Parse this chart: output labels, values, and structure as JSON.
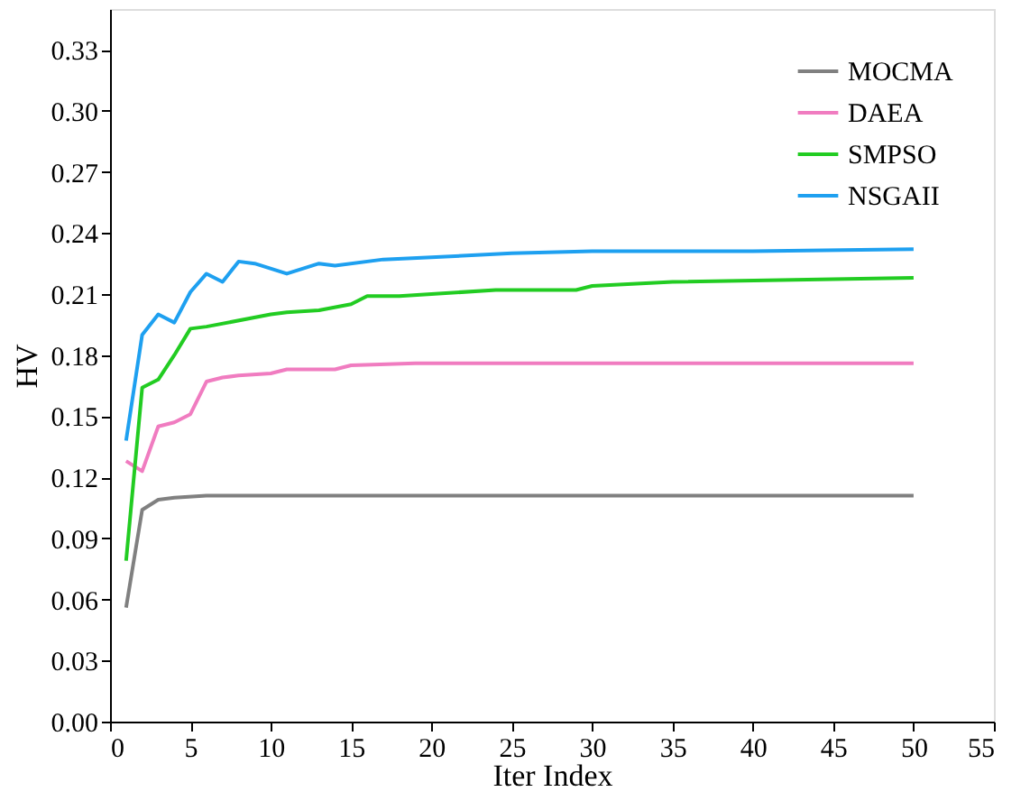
{
  "chart_data": {
    "type": "line",
    "xlabel": "Iter Index",
    "ylabel": "HV",
    "xlim": [
      0,
      55
    ],
    "xticks": [
      0,
      5,
      10,
      15,
      20,
      25,
      30,
      35,
      40,
      45,
      50,
      55
    ],
    "ylim": [
      0,
      0.35
    ],
    "yticks": [
      {
        "value": 0,
        "label": "0.00"
      },
      0.03,
      0.06,
      0.09,
      0.12,
      0.15,
      0.18,
      0.21,
      0.24,
      0.27,
      {
        "value": 0.3,
        "label": "0.30"
      },
      0.33
    ],
    "grid": false,
    "legend": "top right",
    "marker": "none",
    "line_style": "solid",
    "series": [
      {
        "name": "MOCMA",
        "color": "#808080",
        "x": [
          1,
          2,
          3,
          4,
          6,
          50
        ],
        "values": [
          0.056,
          0.104,
          0.109,
          0.11,
          0.111,
          0.111
        ]
      },
      {
        "name": "DAEA",
        "color": "#f07cc0",
        "x": [
          1,
          2,
          3,
          4,
          5,
          6,
          7,
          8,
          10,
          11,
          14,
          15,
          19,
          50
        ],
        "values": [
          0.128,
          0.123,
          0.145,
          0.147,
          0.151,
          0.167,
          0.169,
          0.17,
          0.171,
          0.173,
          0.173,
          0.175,
          0.176,
          0.176
        ]
      },
      {
        "name": "SMPSO",
        "color": "#22cc22",
        "x": [
          1,
          2,
          3,
          4,
          5,
          6,
          10,
          11,
          13,
          15,
          16,
          18,
          20,
          24,
          29,
          30,
          35,
          50
        ],
        "values": [
          0.079,
          0.164,
          0.168,
          0.18,
          0.193,
          0.194,
          0.2,
          0.201,
          0.202,
          0.205,
          0.209,
          0.209,
          0.21,
          0.212,
          0.212,
          0.214,
          0.216,
          0.218
        ]
      },
      {
        "name": "NSGAII",
        "color": "#1ea0f0",
        "x": [
          1,
          2,
          3,
          4,
          5,
          6,
          7,
          8,
          9,
          11,
          13,
          14,
          17,
          20,
          25,
          30,
          40,
          50
        ],
        "values": [
          0.138,
          0.19,
          0.2,
          0.196,
          0.211,
          0.22,
          0.216,
          0.226,
          0.225,
          0.22,
          0.225,
          0.224,
          0.227,
          0.228,
          0.23,
          0.231,
          0.231,
          0.232
        ]
      }
    ]
  }
}
